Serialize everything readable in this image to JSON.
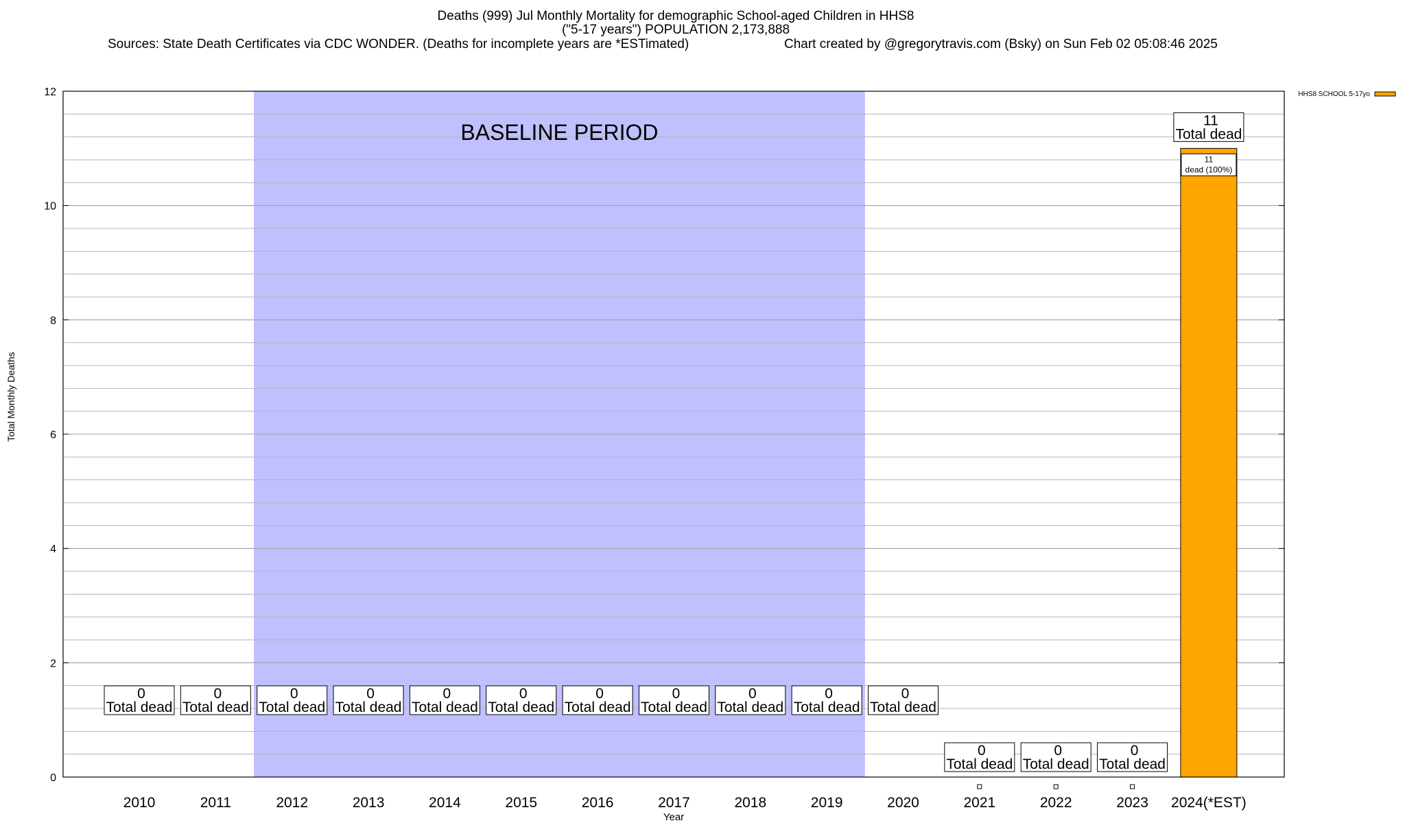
{
  "title": {
    "line1": "Deaths (999) Jul Monthly Mortality for demographic School-aged Children in HHS8",
    "line2": "(\"5-17 years\") POPULATION 2,173,888",
    "sources": "Sources: State Death Certificates via CDC WONDER. (Deaths for incomplete years are *ESTimated)",
    "credit": "Chart created by @gregorytravis.com (Bsky) on Sun Feb 02 05:08:46 2025"
  },
  "chart_data": {
    "type": "bar",
    "title": "Deaths (999) Jul Monthly Mortality for demographic School-aged Children in HHS8",
    "xlabel": "Year",
    "ylabel": "Total Monthly Deaths",
    "ylim": [
      0,
      12
    ],
    "yticks": [
      0,
      2,
      4,
      6,
      8,
      10,
      12
    ],
    "grid": true,
    "legend_position": "top-right",
    "categories": [
      "2010",
      "2011",
      "2012",
      "2013",
      "2014",
      "2015",
      "2016",
      "2017",
      "2018",
      "2019",
      "2020",
      "2021",
      "2022",
      "2023",
      "2024(*EST)"
    ],
    "series": [
      {
        "name": "HHS8 SCHOOL 5-17yo",
        "color": "#ffa500",
        "values": [
          0,
          0,
          0,
          0,
          0,
          0,
          0,
          0,
          0,
          0,
          0,
          0,
          0,
          0,
          11
        ]
      }
    ],
    "total_label_text": "Total dead",
    "segment_label": {
      "category": "2024(*EST)",
      "value": "11",
      "text": "dead (100%)"
    },
    "baseline_period": {
      "label": "BASELINE PERIOD",
      "from": "2012",
      "to": "2019",
      "color": "#c0c0ff"
    }
  }
}
